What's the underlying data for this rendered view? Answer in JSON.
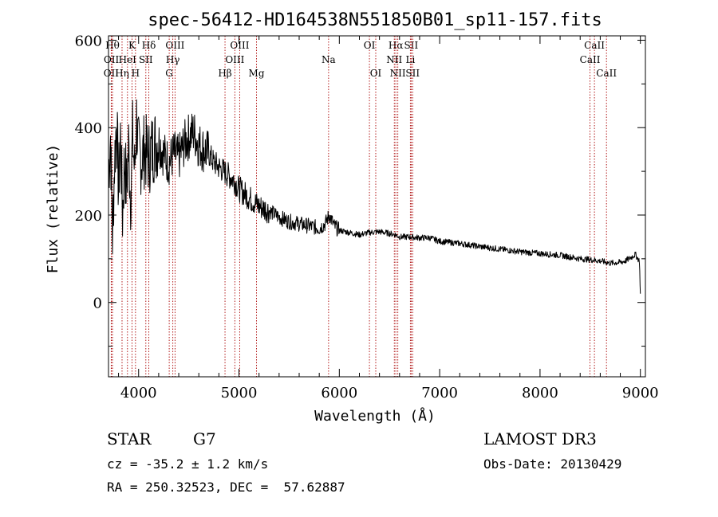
{
  "chart_data": {
    "type": "line",
    "title": "spec-56412-HD164538N551850B01_sp11-157.fits",
    "xlabel": "Wavelength (Å)",
    "ylabel": "Flux (relative)",
    "xlim": [
      3700,
      9050
    ],
    "ylim": [
      -170,
      610
    ],
    "xticks": [
      4000,
      5000,
      6000,
      7000,
      8000,
      9000
    ],
    "yticks": [
      0,
      200,
      400,
      600
    ],
    "series": [
      {
        "name": "spectrum",
        "x": [
          3700,
          3720,
          3740,
          3760,
          3780,
          3800,
          3820,
          3840,
          3860,
          3880,
          3900,
          3920,
          3940,
          3960,
          3980,
          4000,
          4030,
          4060,
          4100,
          4150,
          4200,
          4250,
          4300,
          4350,
          4400,
          4450,
          4500,
          4550,
          4600,
          4650,
          4700,
          4750,
          4800,
          4850,
          4900,
          4950,
          5000,
          5050,
          5100,
          5200,
          5300,
          5400,
          5500,
          5600,
          5700,
          5800,
          5860,
          5900,
          5950,
          6000,
          6100,
          6200,
          6300,
          6400,
          6500,
          6560,
          6600,
          6700,
          6800,
          6900,
          7000,
          7200,
          7400,
          7600,
          7800,
          8000,
          8200,
          8400,
          8500,
          8600,
          8700,
          8800,
          8850,
          8900,
          8950,
          8990,
          9000
        ],
        "y": [
          300,
          380,
          150,
          320,
          420,
          260,
          380,
          200,
          330,
          260,
          360,
          240,
          380,
          300,
          420,
          340,
          330,
          350,
          330,
          360,
          370,
          340,
          320,
          340,
          330,
          360,
          380,
          390,
          360,
          350,
          340,
          320,
          310,
          300,
          290,
          280,
          260,
          250,
          240,
          220,
          210,
          195,
          185,
          180,
          175,
          170,
          180,
          200,
          175,
          165,
          160,
          155,
          160,
          162,
          158,
          155,
          150,
          150,
          148,
          148,
          140,
          135,
          128,
          122,
          116,
          112,
          108,
          100,
          98,
          95,
          90,
          92,
          95,
          102,
          110,
          95,
          20
        ]
      }
    ],
    "lines": [
      {
        "label": "OII",
        "x": 3727,
        "row": 2
      },
      {
        "label": "Hθ",
        "x": 3740,
        "row": 0
      },
      {
        "label": "OII",
        "x": 3729,
        "row": 1
      },
      {
        "label": "Hη",
        "x": 3835,
        "row": 2
      },
      {
        "label": "HeI",
        "x": 3889,
        "row": 1
      },
      {
        "label": "K",
        "x": 3934,
        "row": 0
      },
      {
        "label": "H",
        "x": 3969,
        "row": 2
      },
      {
        "label": "SII",
        "x": 4072,
        "row": 1
      },
      {
        "label": "Hδ",
        "x": 4102,
        "row": 0
      },
      {
        "label": "OIII",
        "x": 4363,
        "row": 0
      },
      {
        "label": "Hγ",
        "x": 4341,
        "row": 1
      },
      {
        "label": "G",
        "x": 4305,
        "row": 2
      },
      {
        "label": "Hβ",
        "x": 4861,
        "row": 2
      },
      {
        "label": "OIII",
        "x": 5007,
        "row": 0
      },
      {
        "label": "OIII",
        "x": 4959,
        "row": 1
      },
      {
        "label": "Mg",
        "x": 5175,
        "row": 2
      },
      {
        "label": "Na",
        "x": 5893,
        "row": 1
      },
      {
        "label": "OI",
        "x": 6300,
        "row": 0
      },
      {
        "label": "OI",
        "x": 6363,
        "row": 2
      },
      {
        "label": "Hα",
        "x": 6563,
        "row": 0
      },
      {
        "label": "NII",
        "x": 6548,
        "row": 1
      },
      {
        "label": "NII",
        "x": 6583,
        "row": 2
      },
      {
        "label": "SII",
        "x": 6716,
        "row": 0
      },
      {
        "label": "Li",
        "x": 6708,
        "row": 1
      },
      {
        "label": "SII",
        "x": 6731,
        "row": 2
      },
      {
        "label": "CaII",
        "x": 8542,
        "row": 0
      },
      {
        "label": "CaII",
        "x": 8498,
        "row": 1
      },
      {
        "label": "CaII",
        "x": 8662,
        "row": 2
      }
    ]
  },
  "info": {
    "class": "STAR",
    "subclass": "G7",
    "survey": "LAMOST DR3",
    "cz": "cz = -35.2 ± 1.2 km/s",
    "obs_date": "Obs-Date: 20130429",
    "coords": "RA = 250.32523, DEC =  57.62887"
  }
}
